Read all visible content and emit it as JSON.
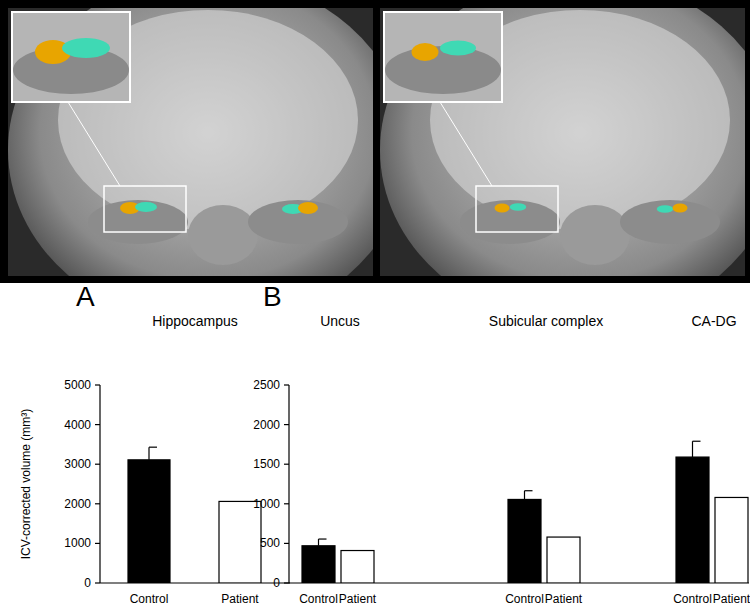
{
  "chart_data": [
    {
      "type": "bar",
      "annotation": "A",
      "title": "Hippocampus",
      "y_label": "ICV-corrected volume (mm³)",
      "categories": [
        "Control",
        "Patient"
      ],
      "values": [
        3110,
        2060
      ],
      "errors": [
        320,
        null
      ],
      "colors": [
        "#000000",
        "#ffffff"
      ],
      "ylim": [
        0,
        5000
      ],
      "yticks": [
        0,
        1000,
        2000,
        3000,
        4000,
        5000
      ],
      "grid": false
    },
    {
      "type": "bar",
      "annotation": "B",
      "groups": [
        {
          "title": "Uncus",
          "categories": [
            "Control",
            "Patient"
          ],
          "values": [
            470,
            410
          ],
          "errors": [
            85,
            null
          ]
        },
        {
          "title": "Subicular complex",
          "categories": [
            "Control",
            "Patient"
          ],
          "values": [
            1055,
            580
          ],
          "errors": [
            110,
            null
          ]
        },
        {
          "title": "CA-DG",
          "categories": [
            "Control",
            "Patient"
          ],
          "values": [
            1590,
            1080
          ],
          "errors": [
            200,
            null
          ]
        }
      ],
      "colors": [
        "#000000",
        "#ffffff"
      ],
      "ylim": [
        0,
        2500
      ],
      "yticks": [
        0,
        500,
        1000,
        1500,
        2000,
        2500
      ],
      "grid": false
    }
  ]
}
